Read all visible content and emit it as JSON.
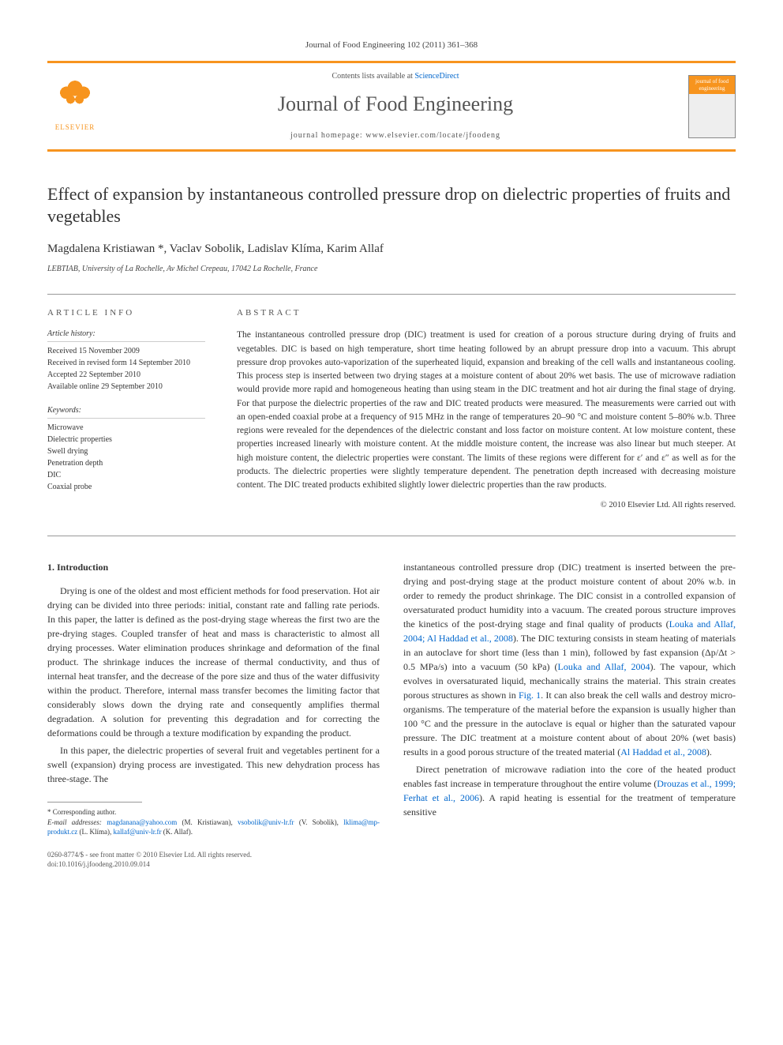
{
  "journal_ref": "Journal of Food Engineering 102 (2011) 361–368",
  "header": {
    "publisher": "ELSEVIER",
    "contents_prefix": "Contents lists available at ",
    "contents_link": "ScienceDirect",
    "journal_name": "Journal of Food Engineering",
    "homepage_prefix": "journal homepage: ",
    "homepage_url": "www.elsevier.com/locate/jfoodeng",
    "cover_label": "journal of food engineering"
  },
  "article": {
    "title": "Effect of expansion by instantaneous controlled pressure drop on dielectric properties of fruits and vegetables",
    "authors": "Magdalena Kristiawan *, Vaclav Sobolik, Ladislav Klíma, Karim Allaf",
    "affiliation": "LEBTIAB, University of La Rochelle, Av Michel Crepeau, 17042 La Rochelle, France"
  },
  "info": {
    "heading": "ARTICLE INFO",
    "history_label": "Article history:",
    "history": [
      "Received 15 November 2009",
      "Received in revised form 14 September 2010",
      "Accepted 22 September 2010",
      "Available online 29 September 2010"
    ],
    "keywords_label": "Keywords:",
    "keywords": [
      "Microwave",
      "Dielectric properties",
      "Swell drying",
      "Penetration depth",
      "DIC",
      "Coaxial probe"
    ]
  },
  "abstract": {
    "heading": "ABSTRACT",
    "text": "The instantaneous controlled pressure drop (DIC) treatment is used for creation of a porous structure during drying of fruits and vegetables. DIC is based on high temperature, short time heating followed by an abrupt pressure drop into a vacuum. This abrupt pressure drop provokes auto-vaporization of the superheated liquid, expansion and breaking of the cell walls and instantaneous cooling. This process step is inserted between two drying stages at a moisture content of about 20% wet basis. The use of microwave radiation would provide more rapid and homogeneous heating than using steam in the DIC treatment and hot air during the final stage of drying. For that purpose the dielectric properties of the raw and DIC treated products were measured. The measurements were carried out with an open-ended coaxial probe at a frequency of 915 MHz in the range of temperatures 20–90 °C and moisture content 5–80% w.b. Three regions were revealed for the dependences of the dielectric constant and loss factor on moisture content. At low moisture content, these properties increased linearly with moisture content. At the middle moisture content, the increase was also linear but much steeper. At high moisture content, the dielectric properties were constant. The limits of these regions were different for ε′ and ε″ as well as for the products. The dielectric properties were slightly temperature dependent. The penetration depth increased with decreasing moisture content. The DIC treated products exhibited slightly lower dielectric properties than the raw products.",
    "copyright": "© 2010 Elsevier Ltd. All rights reserved."
  },
  "body": {
    "sec1_heading": "1. Introduction",
    "p1": "Drying is one of the oldest and most efficient methods for food preservation. Hot air drying can be divided into three periods: initial, constant rate and falling rate periods. In this paper, the latter is defined as the post-drying stage whereas the first two are the pre-drying stages. Coupled transfer of heat and mass is characteristic to almost all drying processes. Water elimination produces shrinkage and deformation of the final product. The shrinkage induces the increase of thermal conductivity, and thus of internal heat transfer, and the decrease of the pore size and thus of the water diffusivity within the product. Therefore, internal mass transfer becomes the limiting factor that considerably slows down the drying rate and consequently amplifies thermal degradation. A solution for preventing this degradation and for correcting the deformations could be through a texture modification by expanding the product.",
    "p2": "In this paper, the dielectric properties of several fruit and vegetables pertinent for a swell (expansion) drying process are investigated. This new dehydration process has three-stage. The",
    "p3a": "instantaneous controlled pressure drop (DIC) treatment is inserted between the pre-drying and post-drying stage at the product moisture content of about 20% w.b. in order to remedy the product shrinkage. The DIC consist in a controlled expansion of oversaturated product humidity into a vacuum. The created porous structure improves the kinetics of the post-drying stage and final quality of products (",
    "ref1": "Louka and Allaf, 2004; Al Haddad et al., 2008",
    "p3b": "). The DIC texturing consists in steam heating of materials in an autoclave for short time (less than 1 min), followed by fast expansion (Δp/Δt > 0.5 MPa/s) into a vacuum (50 kPa) (",
    "ref2": "Louka and Allaf, 2004",
    "p3c": "). The vapour, which evolves in oversaturated liquid, mechanically strains the material. This strain creates porous structures as shown in ",
    "ref3": "Fig. 1",
    "p3d": ". It can also break the cell walls and destroy micro-organisms. The temperature of the material before the expansion is usually higher than 100 °C and the pressure in the autoclave is equal or higher than the saturated vapour pressure. The DIC treatment at a moisture content about of about 20% (wet basis) results in a good porous structure of the treated material (",
    "ref4": "Al Haddad et al., 2008",
    "p3e": ").",
    "p4a": "Direct penetration of microwave radiation into the core of the heated product enables fast increase in temperature throughout the entire volume (",
    "ref5": "Drouzas et al., 1999; Ferhat et al., 2006",
    "p4b": "). A rapid heating is essential for the treatment of temperature sensitive"
  },
  "footnotes": {
    "corresp": "* Corresponding author.",
    "email_label": "E-mail addresses: ",
    "e1": "magdanana@yahoo.com",
    "n1": " (M. Kristiawan), ",
    "e2": "vsobolik@univ-lr.fr",
    "n2": " (V. Sobolik), ",
    "e3": "lklima@mp-produkt.cz",
    "n3": " (L. Klíma), ",
    "e4": "kallaf@univ-lr.fr",
    "n4": " (K. Allaf)."
  },
  "bottom": {
    "line1": "0260-8774/$ - see front matter © 2010 Elsevier Ltd. All rights reserved.",
    "line2": "doi:10.1016/j.jfoodeng.2010.09.014"
  },
  "colors": {
    "accent": "#f7941e",
    "link": "#0066cc",
    "text": "#333333"
  }
}
